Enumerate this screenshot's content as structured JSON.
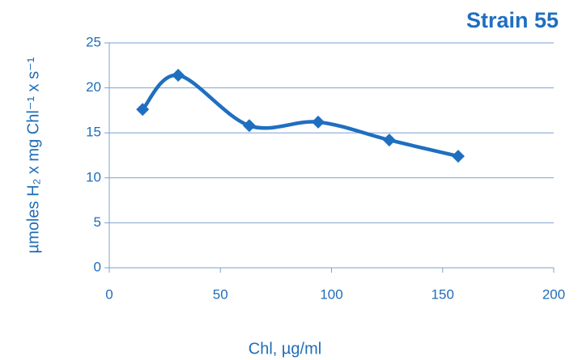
{
  "chart_data": {
    "type": "scatter-line",
    "title": "Strain 55",
    "x_label": "Chl, µg/ml",
    "y_label": "µmoles H₂ x mg Chl⁻¹ x s⁻¹",
    "x": [
      15,
      31,
      63,
      94,
      126,
      157
    ],
    "series": [
      {
        "color": "#1f6fc0",
        "values": [
          17.6,
          21.4,
          15.8,
          16.2,
          14.2,
          12.4
        ]
      }
    ],
    "xlim": [
      0,
      200
    ],
    "xticks": [
      0,
      50,
      100,
      150,
      200
    ],
    "ylim": [
      0,
      25
    ],
    "yticks": [
      0,
      5,
      10,
      15,
      20,
      25
    ],
    "grid": true,
    "smooth": true
  }
}
